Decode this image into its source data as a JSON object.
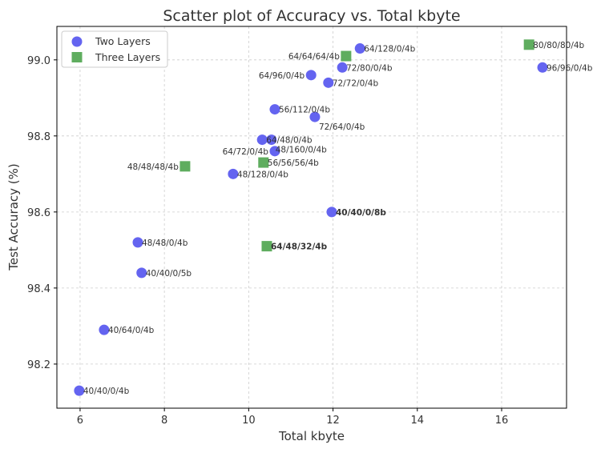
{
  "chart_data": {
    "type": "scatter",
    "title": "Scatter plot of Accuracy vs. Total kbyte",
    "xlabel": "Total kbyte",
    "ylabel": "Test Accuracy (%)",
    "xlim": [
      5.45,
      17.54
    ],
    "ylim": [
      98.084,
      99.088
    ],
    "xticks": [
      6,
      8,
      10,
      12,
      14,
      16
    ],
    "yticks": [
      98.2,
      98.4,
      98.6,
      98.8,
      99.0
    ],
    "ytick_labels": [
      "98.2",
      "98.4",
      "98.6",
      "98.8",
      "99.0"
    ],
    "grid": true,
    "legend_position": "top-left",
    "series": [
      {
        "name": "Two Layers",
        "marker": "circle",
        "color": "#6464f0",
        "points": [
          {
            "x": 12.64,
            "y": 99.03,
            "label": "64/128/0/4b"
          },
          {
            "x": 12.22,
            "y": 98.98,
            "label": "72/80/0/4b"
          },
          {
            "x": 11.48,
            "y": 98.96,
            "label": "64/96/0/4b"
          },
          {
            "x": 11.89,
            "y": 98.94,
            "label": "72/72/0/4b"
          },
          {
            "x": 10.62,
            "y": 98.87,
            "label": "56/112/0/4b"
          },
          {
            "x": 11.57,
            "y": 98.85,
            "label": "72/64/0/4b"
          },
          {
            "x": 10.32,
            "y": 98.79,
            "label": "64/48/0/4b"
          },
          {
            "x": 10.54,
            "y": 98.79,
            "label": "48/160/0/4b"
          },
          {
            "x": 10.62,
            "y": 98.76,
            "label": "64/72/0/4b"
          },
          {
            "x": 9.63,
            "y": 98.7,
            "label": "48/128/0/4b"
          },
          {
            "x": 11.97,
            "y": 98.6,
            "label": "40/40/0/8b",
            "bold": true
          },
          {
            "x": 7.37,
            "y": 98.52,
            "label": "48/48/0/4b"
          },
          {
            "x": 7.46,
            "y": 98.44,
            "label": "40/40/0/5b"
          },
          {
            "x": 6.57,
            "y": 98.29,
            "label": "40/64/0/4b"
          },
          {
            "x": 5.98,
            "y": 98.13,
            "label": "40/40/0/4b"
          },
          {
            "x": 16.97,
            "y": 98.98,
            "label": "96/96/0/4b"
          }
        ]
      },
      {
        "name": "Three Layers",
        "marker": "square",
        "color": "#5fad5f",
        "points": [
          {
            "x": 16.65,
            "y": 99.04,
            "label": "80/80/80/4b"
          },
          {
            "x": 12.31,
            "y": 99.01,
            "label": "64/64/64/4b"
          },
          {
            "x": 10.35,
            "y": 98.73,
            "label": "56/56/56/4b"
          },
          {
            "x": 8.49,
            "y": 98.72,
            "label": "48/48/48/4b"
          },
          {
            "x": 10.43,
            "y": 98.51,
            "label": "64/48/32/4b",
            "bold": true
          }
        ]
      }
    ]
  }
}
